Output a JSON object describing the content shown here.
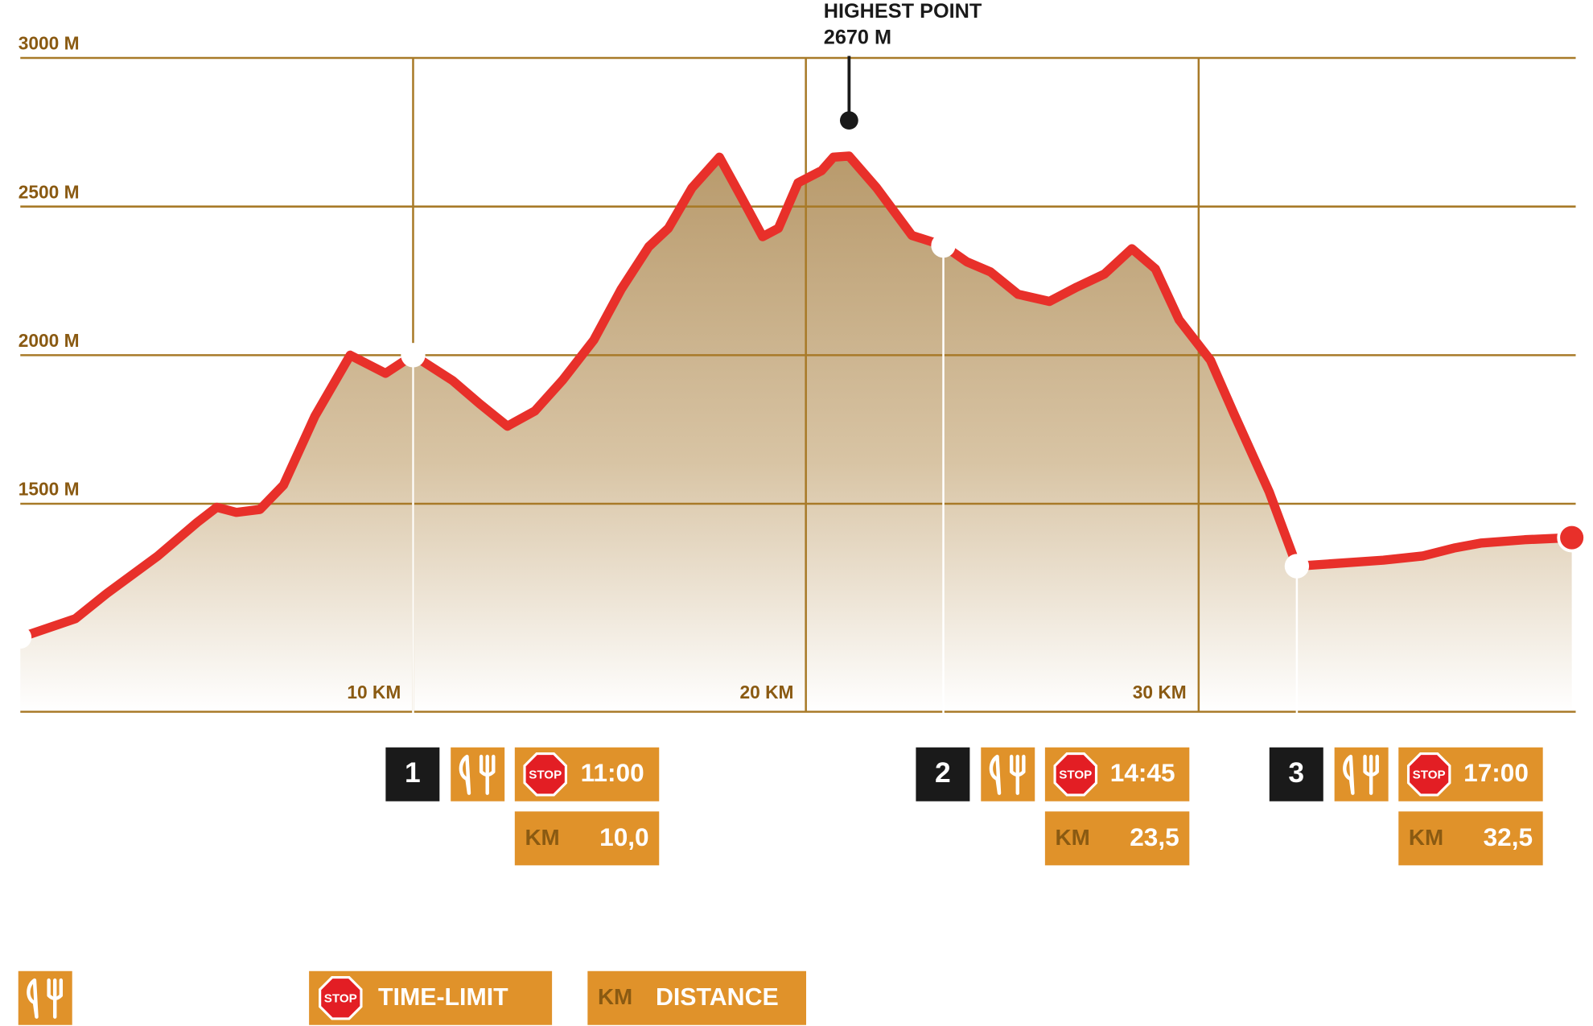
{
  "chart_data": {
    "type": "area",
    "xlim": [
      0,
      39.6
    ],
    "ylim": [
      800,
      3000
    ],
    "yticks": [
      {
        "value": 1500,
        "label": "1500 M"
      },
      {
        "value": 2000,
        "label": "2000 M"
      },
      {
        "value": 2500,
        "label": "2500 M"
      },
      {
        "value": 3000,
        "label": "3000 M"
      }
    ],
    "xticks": [
      {
        "value": 10,
        "label": "10 KM"
      },
      {
        "value": 20,
        "label": "20 KM"
      },
      {
        "value": 30,
        "label": "30 KM"
      }
    ],
    "grid": true,
    "x": [
      0,
      1.4,
      2.2,
      3.5,
      4.5,
      5.0,
      5.5,
      6.1,
      6.7,
      7.5,
      8.4,
      9.3,
      10.0,
      11.0,
      11.7,
      12.4,
      13.1,
      13.8,
      14.6,
      15.3,
      16.0,
      16.5,
      17.1,
      17.8,
      18.3,
      18.9,
      19.3,
      19.8,
      20.4,
      20.7,
      21.1,
      21.8,
      22.7,
      23.5,
      24.1,
      24.7,
      25.4,
      26.2,
      26.9,
      27.6,
      28.3,
      28.9,
      29.5,
      30.3,
      30.9,
      31.8,
      32.5,
      34.7,
      35.7,
      36.5,
      37.2,
      38.3,
      39.5
    ],
    "series": [
      {
        "color": "#e8302a",
        "values": [
          1050,
          1113,
          1198,
          1324,
          1437,
          1488,
          1471,
          1481,
          1563,
          1795,
          2000,
          1939,
          2000,
          1915,
          1836,
          1761,
          1812,
          1915,
          2051,
          2222,
          2365,
          2427,
          2563,
          2666,
          2546,
          2399,
          2427,
          2580,
          2621,
          2666,
          2670,
          2563,
          2403,
          2369,
          2314,
          2280,
          2205,
          2181,
          2229,
          2273,
          2358,
          2290,
          2119,
          1983,
          1802,
          1539,
          1290,
          1310,
          1324,
          1351,
          1368,
          1379,
          1386
        ]
      }
    ],
    "annotation": {
      "title": "HIGHEST POINT",
      "value": 2670,
      "label": "2670 M"
    },
    "stops": [
      {
        "number": "1",
        "sign": "STOP",
        "time": "11:00",
        "unit": "KM",
        "km": {
          "value": 10.0,
          "label": "10,0"
        }
      },
      {
        "number": "2",
        "sign": "STOP",
        "time": "14:45",
        "unit": "KM",
        "km": {
          "value": 23.5,
          "label": "23,5"
        }
      },
      {
        "number": "3",
        "sign": "STOP",
        "time": "17:00",
        "unit": "KM",
        "km": {
          "value": 32.5,
          "label": "32,5"
        }
      }
    ],
    "legend": {
      "sign": "STOP",
      "time_limit": "TIME-LIMIT",
      "unit": "KM",
      "distance": "DISTANCE"
    }
  }
}
